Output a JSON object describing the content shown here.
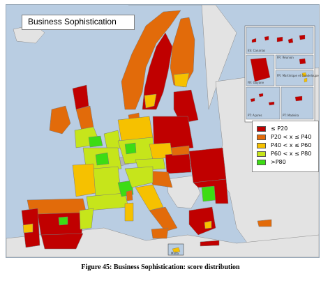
{
  "map": {
    "title": "Business Sophistication",
    "colors": {
      "sea": "#b9cde2",
      "non_eu_land": "#e3e3e3",
      "no_data": "#b3b3b3",
      "border": "#7a7a7a",
      "class_p20": "#c00000",
      "class_p40": "#e26b0a",
      "class_p60": "#f6c100",
      "class_p80": "#c6e51b",
      "class_top": "#3ddc14"
    },
    "legend": [
      {
        "label": "≤ P20",
        "color": "#c00000"
      },
      {
        "label": "P20 < x ≤ P40",
        "color": "#e26b0a"
      },
      {
        "label": "P40 < x ≤ P60",
        "color": "#f6c100"
      },
      {
        "label": "P60 < x ≤ P80",
        "color": "#c6e51b"
      },
      {
        "label": ">P80",
        "color": "#3ddc14"
      }
    ],
    "insets": {
      "canarias": "ES: Canarias",
      "reunion": "FR: Réunion",
      "guyane": "FR: Guyane",
      "martinique_guadeloupe": "FR: Martinique et Guadeloupe",
      "acores": "PT: Açores",
      "madeira": "PT: Madeira"
    },
    "malta_label": "Malta"
  },
  "caption": "Figure 45: Business Sophistication: score distribution"
}
